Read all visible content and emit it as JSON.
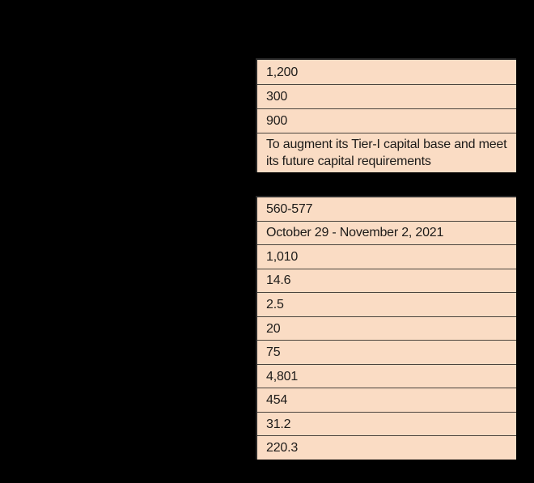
{
  "colors": {
    "page_background": "#000000",
    "cell_background": "#fadcc4",
    "row_separator": "#4b453e",
    "table_border": "#2a2a2a",
    "text": "#1d1b19"
  },
  "top_table": {
    "rows": [
      "1,200",
      "300",
      "900",
      "To augment its Tier-I capital base and meet its future capital requirements"
    ]
  },
  "bottom_table": {
    "rows": [
      "560-577",
      "October 29 - November 2, 2021",
      "1,010",
      "14.6",
      "2.5",
      "20",
      "75",
      "4,801",
      "454",
      "31.2",
      "220.3"
    ]
  }
}
